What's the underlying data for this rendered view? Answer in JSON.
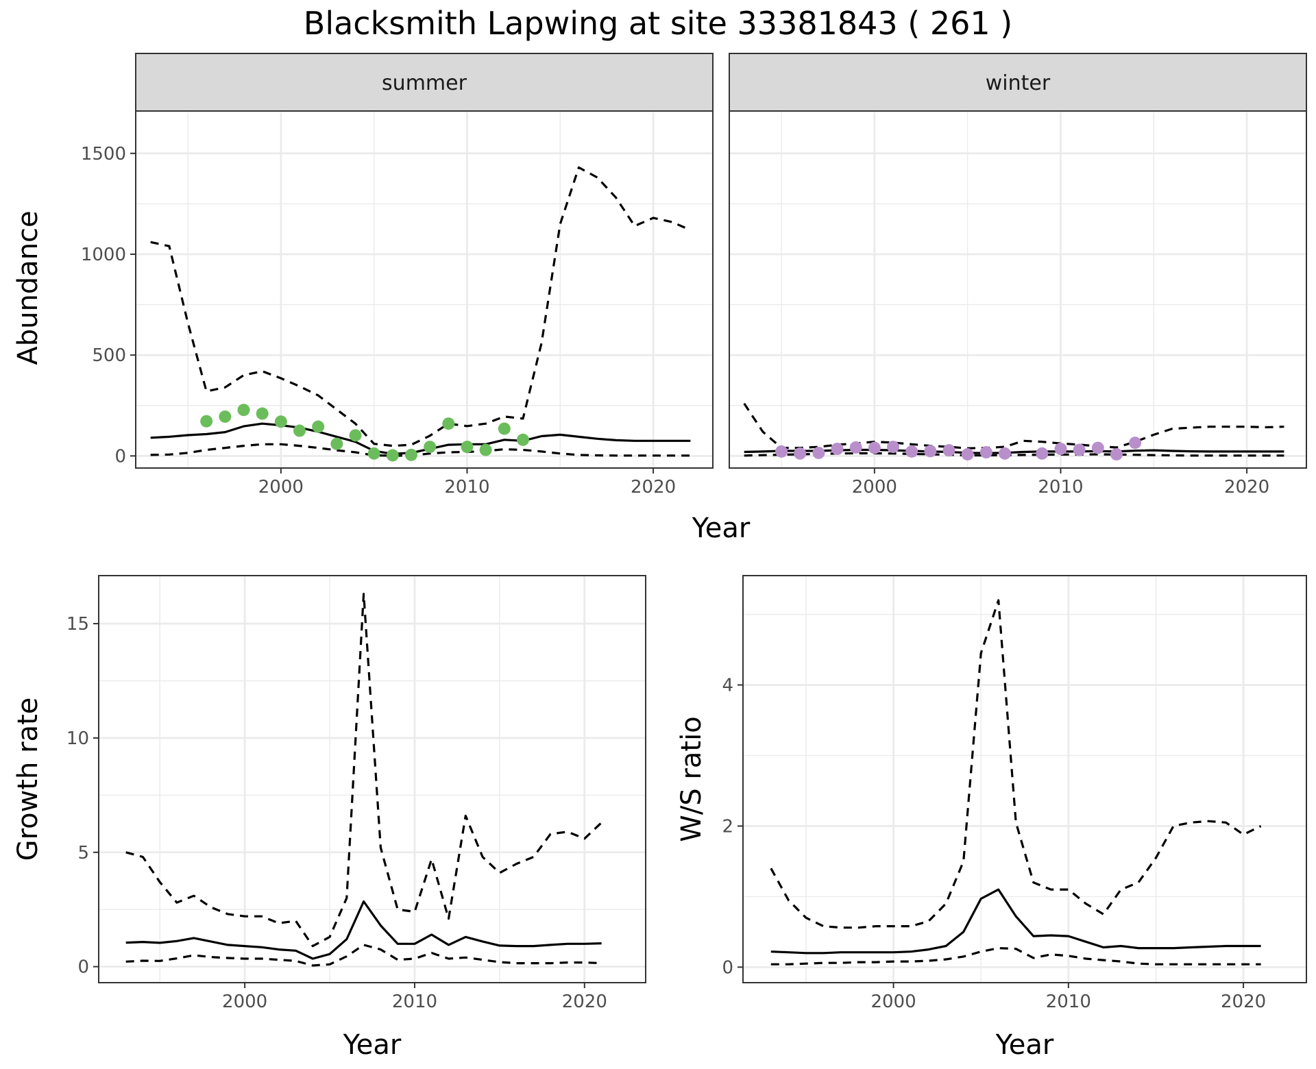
{
  "title": "Blacksmith Lapwing at site 33381843 ( 261 )",
  "chart_data": [
    {
      "type": "line",
      "panel": "summer",
      "strip": "summer",
      "xlabel": "Year",
      "ylabel": "Abundance",
      "xlim": [
        1992.2,
        2023.2
      ],
      "ylim": [
        -60,
        1710
      ],
      "xticks": [
        2000,
        2010,
        2020
      ],
      "yticks": [
        0,
        500,
        1000,
        1500
      ],
      "point_color": "#6bbd5b",
      "series": [
        {
          "role": "estimate",
          "style": "solid",
          "x": [
            1993,
            1994,
            1995,
            1996,
            1997,
            1998,
            1999,
            2000,
            2001,
            2002,
            2003,
            2004,
            2005,
            2006,
            2007,
            2008,
            2009,
            2010,
            2011,
            2012,
            2013,
            2014,
            2015,
            2016,
            2017,
            2018,
            2019,
            2020,
            2021,
            2022
          ],
          "y": [
            90,
            95,
            103,
            108,
            118,
            147,
            160,
            152,
            140,
            120,
            95,
            70,
            25,
            10,
            15,
            35,
            55,
            58,
            58,
            80,
            75,
            98,
            105,
            95,
            85,
            78,
            75,
            75,
            75,
            75
          ]
        },
        {
          "role": "upper",
          "style": "dashed",
          "x": [
            1993,
            1994,
            1995,
            1996,
            1997,
            1998,
            1999,
            2000,
            2001,
            2002,
            2003,
            2004,
            2005,
            2006,
            2007,
            2008,
            2009,
            2010,
            2011,
            2012,
            2013,
            2014,
            2015,
            2016,
            2017,
            2018,
            2019,
            2020,
            2021,
            2022
          ],
          "y": [
            1060,
            1040,
            660,
            320,
            340,
            400,
            420,
            385,
            345,
            300,
            230,
            160,
            60,
            50,
            55,
            100,
            160,
            148,
            160,
            195,
            185,
            560,
            1150,
            1430,
            1380,
            1280,
            1140,
            1180,
            1160,
            1120
          ]
        },
        {
          "role": "lower",
          "style": "dashed",
          "x": [
            1993,
            1994,
            1995,
            1996,
            1997,
            1998,
            1999,
            2000,
            2001,
            2002,
            2003,
            2004,
            2005,
            2006,
            2007,
            2008,
            2009,
            2010,
            2011,
            2012,
            2013,
            2014,
            2015,
            2016,
            2017,
            2018,
            2019,
            2020,
            2021,
            2022
          ],
          "y": [
            5,
            7,
            15,
            30,
            40,
            50,
            58,
            58,
            50,
            40,
            28,
            18,
            3,
            1,
            2,
            12,
            18,
            20,
            24,
            33,
            30,
            22,
            12,
            5,
            3,
            2,
            2,
            2,
            2,
            2
          ]
        },
        {
          "role": "observed",
          "style": "points",
          "x": [
            1996,
            1997,
            1998,
            1999,
            2000,
            2001,
            2002,
            2003,
            2004,
            2005,
            2006,
            2007,
            2008,
            2009,
            2010,
            2011,
            2012,
            2013
          ],
          "y": [
            172,
            195,
            228,
            210,
            170,
            125,
            145,
            60,
            102,
            12,
            3,
            5,
            45,
            160,
            45,
            30,
            135,
            80
          ]
        }
      ]
    },
    {
      "type": "line",
      "panel": "winter",
      "strip": "winter",
      "xlabel": "Year",
      "ylabel": "Abundance",
      "xlim": [
        1992.2,
        2023.2
      ],
      "ylim": [
        -60,
        1710
      ],
      "xticks": [
        2000,
        2010,
        2020
      ],
      "yticks": [
        0,
        500,
        1000,
        1500
      ],
      "point_color": "#b88fcb",
      "series": [
        {
          "role": "estimate",
          "style": "solid",
          "x": [
            1993,
            1994,
            1995,
            1996,
            1997,
            1998,
            1999,
            2000,
            2001,
            2002,
            2003,
            2004,
            2005,
            2006,
            2007,
            2008,
            2009,
            2010,
            2011,
            2012,
            2013,
            2014,
            2015,
            2016,
            2017,
            2018,
            2019,
            2020,
            2021,
            2022
          ],
          "y": [
            20,
            22,
            25,
            25,
            25,
            28,
            30,
            30,
            28,
            25,
            22,
            20,
            15,
            14,
            15,
            20,
            22,
            22,
            22,
            24,
            22,
            26,
            28,
            25,
            23,
            22,
            22,
            22,
            22,
            22
          ]
        },
        {
          "role": "upper",
          "style": "dashed",
          "x": [
            1993,
            1994,
            1995,
            1996,
            1997,
            1998,
            1999,
            2000,
            2001,
            2002,
            2003,
            2004,
            2005,
            2006,
            2007,
            2008,
            2009,
            2010,
            2011,
            2012,
            2013,
            2014,
            2015,
            2016,
            2017,
            2018,
            2019,
            2020,
            2021,
            2022
          ],
          "y": [
            260,
            120,
            40,
            40,
            45,
            55,
            62,
            70,
            66,
            58,
            50,
            45,
            38,
            40,
            45,
            75,
            70,
            62,
            56,
            48,
            42,
            70,
            105,
            135,
            140,
            145,
            145,
            145,
            142,
            145
          ]
        },
        {
          "role": "lower",
          "style": "dashed",
          "x": [
            1993,
            1994,
            1995,
            1996,
            1997,
            1998,
            1999,
            2000,
            2001,
            2002,
            2003,
            2004,
            2005,
            2006,
            2007,
            2008,
            2009,
            2010,
            2011,
            2012,
            2013,
            2014,
            2015,
            2016,
            2017,
            2018,
            2019,
            2020,
            2021,
            2022
          ],
          "y": [
            2,
            4,
            6,
            8,
            10,
            12,
            13,
            13,
            12,
            10,
            8,
            6,
            3,
            3,
            4,
            5,
            6,
            7,
            7,
            8,
            7,
            6,
            4,
            3,
            2,
            2,
            2,
            2,
            2,
            2
          ]
        },
        {
          "role": "observed",
          "style": "points",
          "x": [
            1995,
            1996,
            1997,
            1998,
            1999,
            2000,
            2001,
            2002,
            2003,
            2004,
            2005,
            2006,
            2007,
            2009,
            2010,
            2011,
            2012,
            2013,
            2014
          ],
          "y": [
            22,
            12,
            15,
            35,
            42,
            40,
            45,
            22,
            24,
            28,
            8,
            18,
            12,
            12,
            35,
            30,
            40,
            8,
            65
          ]
        }
      ]
    },
    {
      "type": "line",
      "panel": "growth",
      "xlabel": "Year",
      "ylabel": "Growth rate",
      "xlim": [
        1991.4,
        2023.6
      ],
      "ylim": [
        -0.7,
        17.1
      ],
      "xticks": [
        2000,
        2010,
        2020
      ],
      "yticks": [
        0,
        5,
        10,
        15
      ],
      "series": [
        {
          "role": "estimate",
          "style": "solid",
          "x": [
            1993,
            1994,
            1995,
            1996,
            1997,
            1998,
            1999,
            2000,
            2001,
            2002,
            2003,
            2004,
            2005,
            2006,
            2007,
            2008,
            2009,
            2010,
            2011,
            2012,
            2013,
            2014,
            2015,
            2016,
            2017,
            2018,
            2019,
            2020,
            2021
          ],
          "y": [
            1.05,
            1.08,
            1.04,
            1.12,
            1.25,
            1.1,
            0.95,
            0.9,
            0.85,
            0.75,
            0.7,
            0.35,
            0.55,
            1.2,
            2.85,
            1.8,
            1.0,
            1.0,
            1.4,
            0.95,
            1.3,
            1.1,
            0.92,
            0.9,
            0.9,
            0.95,
            1.0,
            1.0,
            1.02
          ]
        },
        {
          "role": "upper",
          "style": "dashed",
          "x": [
            1993,
            1994,
            1995,
            1996,
            1997,
            1998,
            1999,
            2000,
            2001,
            2002,
            2003,
            2004,
            2005,
            2006,
            2007,
            2008,
            2009,
            2010,
            2011,
            2012,
            2013,
            2014,
            2015,
            2016,
            2017,
            2018,
            2019,
            2020,
            2021
          ],
          "y": [
            5.0,
            4.8,
            3.7,
            2.8,
            3.1,
            2.6,
            2.3,
            2.2,
            2.2,
            1.9,
            2.0,
            0.9,
            1.3,
            3.0,
            16.3,
            5.2,
            2.5,
            2.4,
            4.7,
            2.1,
            6.6,
            4.8,
            4.1,
            4.5,
            4.8,
            5.8,
            5.9,
            5.6,
            6.3
          ]
        },
        {
          "role": "lower",
          "style": "dashed",
          "x": [
            1993,
            1994,
            1995,
            1996,
            1997,
            1998,
            1999,
            2000,
            2001,
            2002,
            2003,
            2004,
            2005,
            2006,
            2007,
            2008,
            2009,
            2010,
            2011,
            2012,
            2013,
            2014,
            2015,
            2016,
            2017,
            2018,
            2019,
            2020,
            2021
          ],
          "y": [
            0.22,
            0.26,
            0.25,
            0.36,
            0.5,
            0.42,
            0.38,
            0.35,
            0.35,
            0.3,
            0.25,
            0.05,
            0.1,
            0.45,
            0.95,
            0.75,
            0.3,
            0.35,
            0.6,
            0.35,
            0.4,
            0.3,
            0.2,
            0.15,
            0.15,
            0.15,
            0.18,
            0.18,
            0.15
          ]
        }
      ]
    },
    {
      "type": "line",
      "panel": "ratio",
      "xlabel": "Year",
      "ylabel": "W/S ratio",
      "xlim": [
        1991.4,
        2023.6
      ],
      "ylim": [
        -0.22,
        5.55
      ],
      "xticks": [
        2000,
        2010,
        2020
      ],
      "yticks": [
        0,
        2,
        4
      ],
      "series": [
        {
          "role": "estimate",
          "style": "solid",
          "x": [
            1993,
            1994,
            1995,
            1996,
            1997,
            1998,
            1999,
            2000,
            2001,
            2002,
            2003,
            2004,
            2005,
            2006,
            2007,
            2008,
            2009,
            2010,
            2011,
            2012,
            2013,
            2014,
            2015,
            2016,
            2017,
            2018,
            2019,
            2020,
            2021
          ],
          "y": [
            0.22,
            0.21,
            0.2,
            0.2,
            0.21,
            0.21,
            0.21,
            0.21,
            0.22,
            0.25,
            0.3,
            0.5,
            0.97,
            1.1,
            0.72,
            0.44,
            0.45,
            0.44,
            0.36,
            0.28,
            0.3,
            0.27,
            0.27,
            0.27,
            0.28,
            0.29,
            0.3,
            0.3,
            0.3
          ]
        },
        {
          "role": "upper",
          "style": "dashed",
          "x": [
            1993,
            1994,
            1995,
            1996,
            1997,
            1998,
            1999,
            2000,
            2001,
            2002,
            2003,
            2004,
            2005,
            2006,
            2007,
            2008,
            2009,
            2010,
            2011,
            2012,
            2013,
            2014,
            2015,
            2016,
            2017,
            2018,
            2019,
            2020,
            2021
          ],
          "y": [
            1.4,
            0.95,
            0.7,
            0.58,
            0.56,
            0.56,
            0.58,
            0.58,
            0.58,
            0.65,
            0.9,
            1.5,
            4.45,
            5.2,
            2.05,
            1.2,
            1.1,
            1.1,
            0.9,
            0.75,
            1.1,
            1.2,
            1.55,
            2.0,
            2.05,
            2.07,
            2.05,
            1.88,
            2.0
          ]
        },
        {
          "role": "lower",
          "style": "dashed",
          "x": [
            1993,
            1994,
            1995,
            1996,
            1997,
            1998,
            1999,
            2000,
            2001,
            2002,
            2003,
            2004,
            2005,
            2006,
            2007,
            2008,
            2009,
            2010,
            2011,
            2012,
            2013,
            2014,
            2015,
            2016,
            2017,
            2018,
            2019,
            2020,
            2021
          ],
          "y": [
            0.04,
            0.04,
            0.05,
            0.06,
            0.06,
            0.07,
            0.07,
            0.08,
            0.08,
            0.09,
            0.11,
            0.15,
            0.22,
            0.27,
            0.26,
            0.13,
            0.18,
            0.16,
            0.12,
            0.1,
            0.08,
            0.05,
            0.04,
            0.04,
            0.04,
            0.04,
            0.04,
            0.04,
            0.04
          ]
        }
      ]
    }
  ]
}
